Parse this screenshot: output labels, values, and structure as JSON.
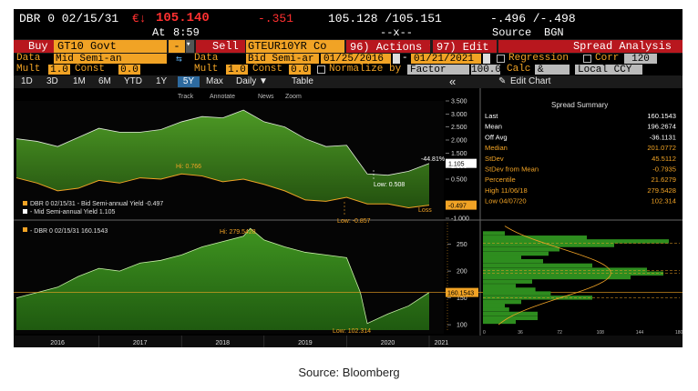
{
  "quote_bar": {
    "security": "DBR 0 02/15/31",
    "currency_arrow": "€↓",
    "last": "105.140",
    "change": "-.351",
    "bid_ask": "105.128 /105.151",
    "yield_bid_ask": "-.496 /-.498",
    "at_label": "At",
    "time": "8:59",
    "dashes": "--x--",
    "source_label": "Source",
    "source_value": "BGN"
  },
  "toolbar": {
    "buy_label": "Buy",
    "buy_security": "GT10 Govt",
    "sell_label": "Sell",
    "sell_security": "GTEUR10YR Co",
    "actions_label": "96) Actions ▾",
    "edit_label": "97) Edit ▾",
    "spread_analysis": "Spread Analysis"
  },
  "row_data": {
    "data1_label": "Data",
    "data1_value": "Mid Semi-an",
    "data2_label": "Data",
    "data2_value": "Bid Semi-ar",
    "date_from": "01/25/2016",
    "date_to": "01/21/2021",
    "regression_label": "Regression",
    "corr_label": "Corr",
    "corr_value": "120"
  },
  "row_mult": {
    "mult1_label": "Mult",
    "mult1_value": "1.0",
    "const1_label": "Const",
    "const1_value": "0.0",
    "mult2_label": "Mult",
    "mult2_value": "1.0",
    "const2_label": "Const",
    "const2_value": "0.0",
    "normalize_label": "Normalize by",
    "normalize_value": "Factor",
    "factor_value": "100.0",
    "calc_label": "Calc",
    "calc_value": "&",
    "ccy_value": "Local CCY"
  },
  "periods": [
    "1D",
    "3D",
    "1M",
    "6M",
    "YTD",
    "1Y",
    "5Y",
    "Max"
  ],
  "selected_period": "5Y",
  "frequency": "Daily ▼",
  "table_label": "Table",
  "collapse_label": "«",
  "edit_chart_label": "Edit Chart",
  "chart_tools": [
    "Track",
    "Annotate",
    "News",
    "Zoom"
  ],
  "spread_summary": {
    "title": "Spread Summary",
    "rows": [
      {
        "label": "Last",
        "value": "160.1543",
        "color": "#ffffff"
      },
      {
        "label": "Mean",
        "value": "196.2674",
        "color": "#ffffff"
      },
      {
        "label": "Off Avg",
        "value": "-36.1131",
        "color": "#ffffff"
      },
      {
        "label": "Median",
        "value": "201.0772",
        "color": "#f1a325"
      },
      {
        "label": "StDev",
        "value": "45.5112",
        "color": "#f1a325"
      },
      {
        "label": "StDev from Mean",
        "value": "-0.7935",
        "color": "#f1a325"
      },
      {
        "label": "Percentile",
        "value": "21.6279",
        "color": "#f1a325"
      },
      {
        "label": "High 11/06/18",
        "value": "279.5428",
        "color": "#f1a325"
      },
      {
        "label": "Low 04/07/20",
        "value": "102.314",
        "color": "#f1a325"
      }
    ]
  },
  "footer_source": "Source: Bloomberg",
  "colors": {
    "green_fill": "#3f8a1e",
    "green_dark": "#244f12",
    "orange_line": "#f1a325",
    "red": "#b8171e",
    "bar_green": "#2e8d1f"
  },
  "chart_data": [
    {
      "type": "area",
      "series": [
        {
          "name": "DBR 0 02/15/31 - Bid Semi-annual Yield",
          "last": "-0.497",
          "x": [
            "2016-01",
            "2016-04",
            "2016-07",
            "2016-10",
            "2017-01",
            "2017-04",
            "2017-07",
            "2017-10",
            "2018-01",
            "2018-04",
            "2018-07",
            "2018-10",
            "2019-01",
            "2019-04",
            "2019-07",
            "2019-10",
            "2020-01",
            "2020-04",
            "2020-07",
            "2020-10",
            "2021-01"
          ],
          "y": [
            0.55,
            0.35,
            0.05,
            0.15,
            0.45,
            0.35,
            0.55,
            0.5,
            0.7,
            0.62,
            0.4,
            0.5,
            0.3,
            0.05,
            -0.3,
            -0.35,
            -0.2,
            -0.45,
            -0.45,
            -0.6,
            -0.5
          ]
        },
        {
          "name": "Mid Semi-annual Yield",
          "last": "1.105",
          "x": [
            "2016-01",
            "2016-04",
            "2016-07",
            "2016-10",
            "2017-01",
            "2017-04",
            "2017-07",
            "2017-10",
            "2018-01",
            "2018-04",
            "2018-07",
            "2018-10",
            "2019-01",
            "2019-04",
            "2019-07",
            "2019-10",
            "2020-01",
            "2020-04",
            "2020-07",
            "2020-10",
            "2021-01"
          ],
          "y": [
            2.05,
            1.95,
            1.75,
            2.1,
            2.45,
            2.3,
            2.3,
            2.4,
            2.7,
            2.9,
            2.85,
            3.15,
            2.7,
            2.5,
            2.05,
            1.75,
            1.8,
            0.7,
            0.65,
            0.8,
            1.1
          ]
        }
      ],
      "ylim": [
        -1.0,
        3.5
      ],
      "yticks": [
        "3.500",
        "3.000",
        "2.500",
        "2.000",
        "1.500",
        "1.000",
        "0.500",
        "-0.500",
        "-1.000"
      ],
      "annotations": [
        "Hi: 0.766",
        "Low: 0.508",
        "Low: -0.857",
        "Loss",
        "-44.81%"
      ],
      "last_labels": [
        "1.105",
        "-0.497"
      ],
      "xlabel": "",
      "ylabel": ""
    },
    {
      "type": "area",
      "series": [
        {
          "name": "DBR 0 02/15/31 160.1543",
          "x": [
            "2016-01",
            "2016-04",
            "2016-07",
            "2016-10",
            "2017-01",
            "2017-04",
            "2017-07",
            "2017-10",
            "2018-01",
            "2018-04",
            "2018-07",
            "2018-10",
            "2018-11",
            "2019-01",
            "2019-04",
            "2019-07",
            "2019-10",
            "2020-01",
            "2020-03",
            "2020-04",
            "2020-07",
            "2020-10",
            "2021-01"
          ],
          "y": [
            150,
            160,
            170,
            190,
            205,
            200,
            215,
            220,
            230,
            245,
            255,
            265,
            279.54,
            258,
            245,
            235,
            230,
            225,
            160,
            102.31,
            120,
            135,
            160.15
          ]
        }
      ],
      "ylim": [
        90,
        290
      ],
      "yticks": [
        "250",
        "200",
        "150",
        "100"
      ],
      "annotations": [
        "Hi: 279.5428",
        "Low: 102.314"
      ],
      "last_label": "160.1543",
      "xticks": [
        "2016",
        "2017",
        "2018",
        "2019",
        "2020",
        "2021"
      ]
    },
    {
      "type": "bar",
      "orientation": "horizontal",
      "title": "",
      "xticks": [
        "0",
        "36",
        "72",
        "108",
        "144",
        "180"
      ],
      "bins": [
        270,
        262,
        255,
        248,
        240,
        232,
        225,
        218,
        210,
        202,
        195,
        188,
        180,
        172,
        165,
        158,
        150,
        142,
        135,
        128,
        120,
        112,
        105
      ],
      "counts": [
        20,
        95,
        170,
        120,
        70,
        60,
        35,
        55,
        100,
        150,
        165,
        135,
        45,
        30,
        48,
        62,
        100,
        35,
        20,
        24,
        50,
        50,
        30
      ]
    }
  ]
}
